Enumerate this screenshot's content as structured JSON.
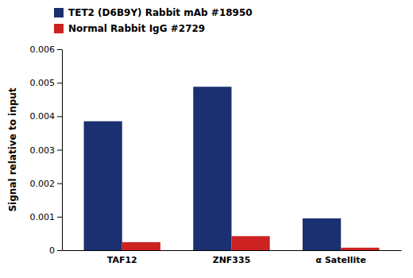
{
  "chart_data": {
    "type": "bar",
    "categories": [
      "TAF12",
      "ZNF335",
      "α Satellite"
    ],
    "series": [
      {
        "name": "TET2 (D6B9Y) Rabbit mAb #18950",
        "color": "#1a3070",
        "values": [
          0.00385,
          0.00488,
          0.00095
        ]
      },
      {
        "name": "Normal Rabbit IgG #2729",
        "color": "#cc2222",
        "values": [
          0.00024,
          0.00042,
          7.5e-05
        ]
      }
    ],
    "y_label": "Signal relative to input",
    "ylim": [
      0,
      0.006
    ],
    "yticks": [
      0,
      0.001,
      0.002,
      0.003,
      0.004,
      0.005,
      0.006
    ],
    "grid": false,
    "legend": "upper left"
  }
}
